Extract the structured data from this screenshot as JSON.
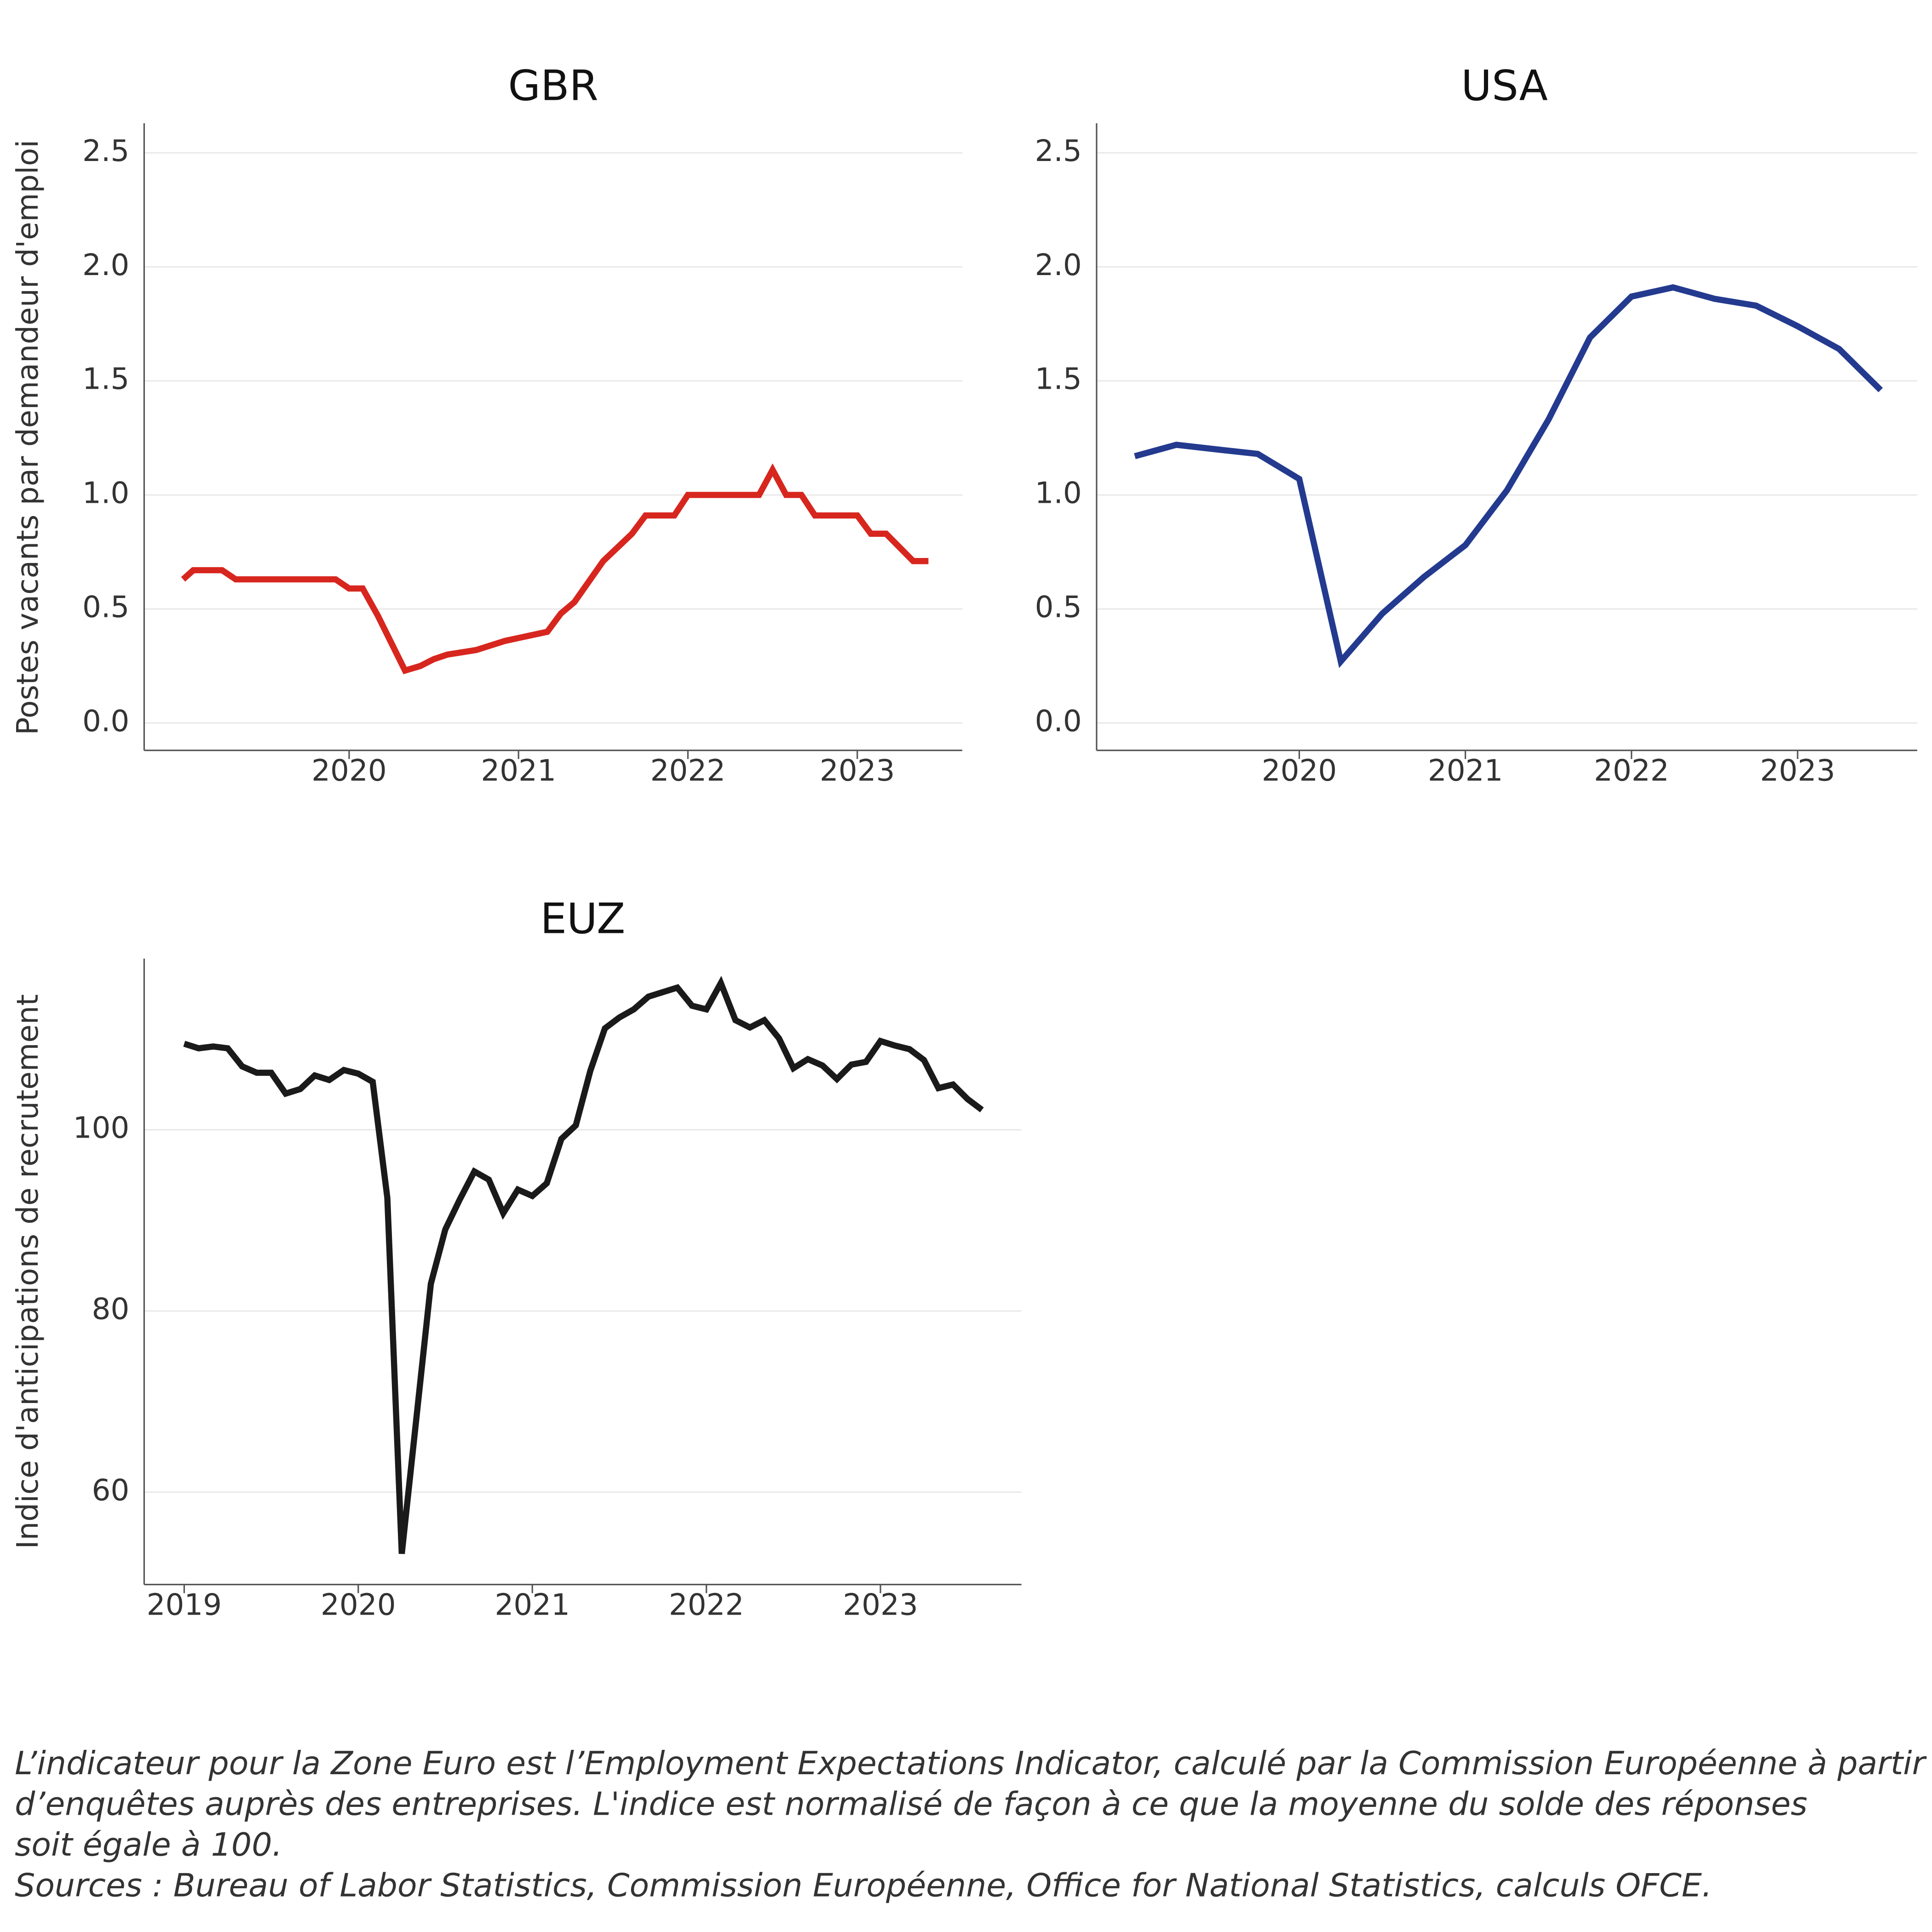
{
  "chart_data": [
    {
      "type": "line",
      "title": "GBR",
      "ylabel": "Postes vacants par demandeur d'emploi",
      "color": "#d7261e",
      "x": [
        2019.02,
        2019.08,
        2019.25,
        2019.33,
        2019.92,
        2020.0,
        2020.08,
        2020.17,
        2020.25,
        2020.33,
        2020.42,
        2020.5,
        2020.58,
        2020.75,
        2020.92,
        2021.17,
        2021.25,
        2021.33,
        2021.5,
        2021.67,
        2021.75,
        2021.92,
        2022.0,
        2022.42,
        2022.5,
        2022.58,
        2022.67,
        2022.75,
        2023.0,
        2023.08,
        2023.17,
        2023.33,
        2023.42
      ],
      "values": [
        0.63,
        0.67,
        0.67,
        0.63,
        0.63,
        0.59,
        0.59,
        0.47,
        0.35,
        0.23,
        0.25,
        0.28,
        0.3,
        0.32,
        0.36,
        0.4,
        0.48,
        0.53,
        0.71,
        0.83,
        0.91,
        0.91,
        1.0,
        1.0,
        1.11,
        1.0,
        1.0,
        0.91,
        0.91,
        0.83,
        0.83,
        0.71,
        0.71
      ],
      "xlim": [
        2018.79,
        2023.62
      ],
      "ylim": [
        -0.12,
        2.63
      ],
      "xticks": [
        2020,
        2021,
        2022,
        2023
      ],
      "yticks": [
        {
          "value": 0,
          "label": "0.0"
        },
        0.5,
        {
          "value": 1,
          "label": "1.0"
        },
        1.5,
        {
          "value": 2,
          "label": "2.0"
        },
        2.5
      ],
      "grid": true
    },
    {
      "type": "line",
      "title": "USA",
      "color": "#233a8f",
      "x": [
        2019.01,
        2019.26,
        2019.5,
        2019.75,
        2020.0,
        2020.25,
        2020.5,
        2020.75,
        2021.0,
        2021.25,
        2021.5,
        2021.75,
        2022.0,
        2022.25,
        2022.5,
        2022.75,
        2023.0,
        2023.25,
        2023.5
      ],
      "values": [
        1.17,
        1.22,
        1.2,
        1.18,
        1.07,
        0.27,
        0.48,
        0.64,
        0.78,
        1.02,
        1.33,
        1.69,
        1.87,
        1.91,
        1.86,
        1.83,
        1.74,
        1.64,
        1.46
      ],
      "xlim": [
        2018.78,
        2023.72
      ],
      "ylim": [
        -0.12,
        2.63
      ],
      "xticks": [
        2020,
        2021,
        2022,
        2023
      ],
      "yticks": [
        {
          "value": 0,
          "label": "0.0"
        },
        0.5,
        {
          "value": 1,
          "label": "1.0"
        },
        1.5,
        {
          "value": 2,
          "label": "2.0"
        },
        2.5
      ],
      "grid": true
    },
    {
      "type": "line",
      "title": "EUZ",
      "ylabel": "Indice d'anticipations de recrutement",
      "color": "#1a1a1a",
      "x": [
        2019.0,
        2019.083,
        2019.167,
        2019.25,
        2019.333,
        2019.417,
        2019.5,
        2019.583,
        2019.667,
        2019.75,
        2019.833,
        2019.917,
        2020.0,
        2020.083,
        2020.167,
        2020.25,
        2020.333,
        2020.417,
        2020.5,
        2020.583,
        2020.667,
        2020.75,
        2020.833,
        2020.917,
        2021.0,
        2021.083,
        2021.167,
        2021.25,
        2021.333,
        2021.417,
        2021.5,
        2021.583,
        2021.667,
        2021.75,
        2021.833,
        2021.917,
        2022.0,
        2022.083,
        2022.167,
        2022.25,
        2022.333,
        2022.417,
        2022.5,
        2022.583,
        2022.667,
        2022.75,
        2022.833,
        2022.917,
        2023.0,
        2023.083,
        2023.167,
        2023.25,
        2023.333,
        2023.417,
        2023.5,
        2023.583
      ],
      "values": [
        109.5,
        109,
        109.2,
        109,
        107,
        106.3,
        106.3,
        104,
        104.5,
        106,
        105.5,
        106.6,
        106.2,
        105.3,
        92.5,
        53.2,
        68,
        83,
        89,
        92.3,
        95.4,
        94.5,
        90.8,
        93.4,
        92.7,
        94.1,
        99,
        100.5,
        106.5,
        111.2,
        112.4,
        113.3,
        114.7,
        115.2,
        115.7,
        113.7,
        113.3,
        116.2,
        112.1,
        111.3,
        112.1,
        110.1,
        106.8,
        107.8,
        107.1,
        105.6,
        107.2,
        107.5,
        109.8,
        109.3,
        108.9,
        107.7,
        104.6,
        105,
        103.4,
        102.2
      ],
      "xlim": [
        2018.77,
        2023.81
      ],
      "ylim": [
        49.8,
        118.9
      ],
      "xticks": [
        2019,
        2020,
        2021,
        2022,
        2023
      ],
      "yticks": [
        60,
        80,
        100
      ],
      "grid": true
    }
  ],
  "notes": [
    "L’indicateur pour la Zone Euro est l’Employment Expectations Indicator, calculé par la Commission Européenne à partir",
    "d’enquêtes auprès des entreprises. L'indice est normalisé de façon à ce que la moyenne du solde des réponses",
    "soit égale à 100.",
    "Sources : Bureau of Labor Statistics, Commission Européenne, Office for National Statistics, calculs OFCE."
  ]
}
